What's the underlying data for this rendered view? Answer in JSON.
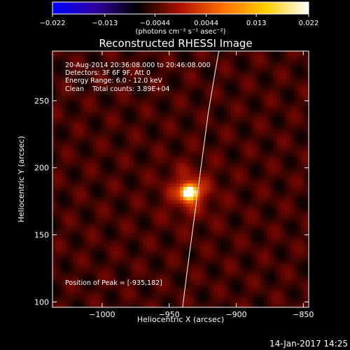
{
  "chart_data": {
    "type": "heatmap",
    "title": "Reconstructed RHESSI Image",
    "xlabel": "Heliocentric X (arcsec)",
    "ylabel": "Heliocentric Y (arcsec)",
    "xlim": [
      -1037,
      -846
    ],
    "ylim": [
      96,
      287
    ],
    "x_ticks": [
      -1000,
      -950,
      -900,
      -850
    ],
    "x_tick_labels": [
      "−1000",
      "−950",
      "−900",
      "−850"
    ],
    "y_ticks": [
      100,
      150,
      200,
      250
    ],
    "y_tick_labels": [
      "100",
      "150",
      "200",
      "250"
    ],
    "colorbar": {
      "range": [
        -0.022,
        0.022
      ],
      "ticks": [
        -0.022,
        -0.013,
        -0.0044,
        0.0044,
        0.013,
        0.022
      ],
      "tick_labels": [
        "−0.022",
        "−0.013",
        "−0.0044",
        "0.0044",
        "0.013",
        "0.022"
      ],
      "units_label": "(photons cm⁻² s⁻¹ asec⁻²)",
      "colormap_stops": [
        "#0000ff",
        "#3000a0",
        "#000000",
        "#b01000",
        "#ff7000",
        "#ffd000",
        "#ffffff"
      ]
    },
    "annotations": {
      "time_range": "20-Aug-2014 20:36:08.000 to 20:46:08.000",
      "detectors": "Detectors: 3F 6F 9F, Att 0",
      "energy_range": "Energy Range: 6.0 - 12.0 keV",
      "method_and_counts": "Clean    Total counts: 3.89E+04",
      "peak_position": "Position of Peak = [-935,182]"
    },
    "source": {
      "x": -935,
      "y": 182,
      "peak": 0.022
    },
    "background_level": 0.006,
    "limb_curve": [
      [
        -940,
        96
      ],
      [
        -937,
        120
      ],
      [
        -933,
        150
      ],
      [
        -929,
        180
      ],
      [
        -925,
        210
      ],
      [
        -921,
        240
      ],
      [
        -916,
        270
      ],
      [
        -913,
        287
      ]
    ],
    "timestamp": "14-Jan-2017 14:25"
  }
}
